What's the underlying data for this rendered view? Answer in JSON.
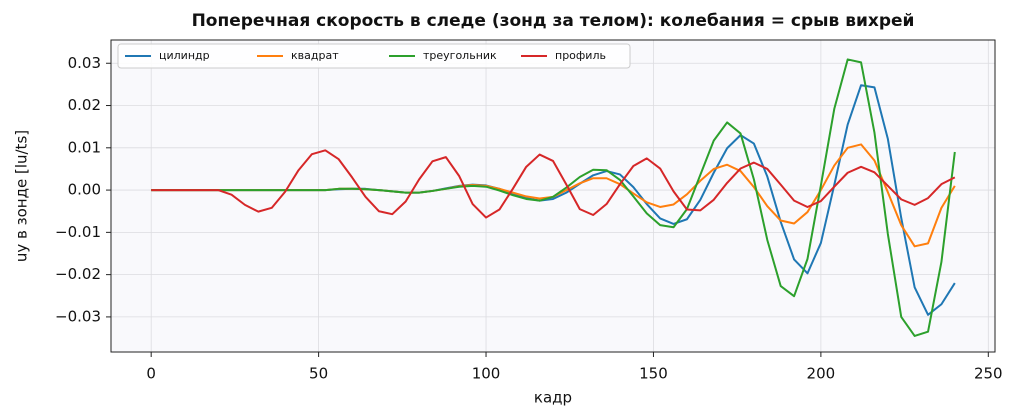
{
  "chart_data": {
    "type": "line",
    "title": "Поперечная скорость в следе (зонд за телом): колебания = срыв вихрей",
    "xlabel": "кадр",
    "ylabel": "uy в зонде [lu/ts]",
    "x": [
      0,
      4,
      8,
      12,
      16,
      20,
      24,
      28,
      32,
      36,
      40,
      44,
      48,
      52,
      56,
      60,
      64,
      68,
      72,
      76,
      80,
      84,
      88,
      92,
      96,
      100,
      104,
      108,
      112,
      116,
      120,
      124,
      128,
      132,
      136,
      140,
      144,
      148,
      152,
      156,
      160,
      164,
      168,
      172,
      176,
      180,
      184,
      188,
      192,
      196,
      200,
      204,
      208,
      212,
      216,
      220,
      224,
      228,
      232,
      236,
      240
    ],
    "series": [
      {
        "name": "цилиндр",
        "color": "#1f77b4",
        "values": [
          0,
          0,
          0,
          0,
          0,
          0,
          0,
          0,
          0,
          0,
          0,
          0,
          0,
          0,
          0.0002,
          0.0003,
          0.0003,
          0,
          -0.0003,
          -0.0006,
          -0.0006,
          -0.0002,
          0.0004,
          0.001,
          0.0013,
          0.0011,
          0.0003,
          -0.0009,
          -0.0019,
          -0.0025,
          -0.0021,
          -0.0006,
          0.0015,
          0.0035,
          0.0045,
          0.0037,
          0.0007,
          -0.0033,
          -0.0067,
          -0.008,
          -0.0069,
          -0.0023,
          0.0041,
          0.0099,
          0.013,
          0.011,
          0.0032,
          -0.0075,
          -0.0164,
          -0.0197,
          -0.0125,
          0.0012,
          0.0155,
          0.0248,
          0.0243,
          0.0121,
          -0.0066,
          -0.023,
          -0.0295,
          -0.027,
          -0.022
        ]
      },
      {
        "name": "квадрат",
        "color": "#ff7f0e",
        "values": [
          0,
          0,
          0,
          0,
          0,
          0,
          0,
          0,
          0,
          0,
          0,
          0,
          0,
          0,
          0.0003,
          0.0003,
          0.0002,
          0,
          -0.0003,
          -0.0006,
          -0.0006,
          -0.0002,
          0.0003,
          0.0009,
          0.0012,
          0.001,
          0.0003,
          -0.0006,
          -0.0015,
          -0.002,
          -0.0016,
          0,
          0.0016,
          0.0028,
          0.0028,
          0.0014,
          -0.0008,
          -0.0029,
          -0.004,
          -0.0034,
          -0.001,
          0.0022,
          0.005,
          0.006,
          0.0045,
          0.0007,
          -0.0038,
          -0.0072,
          -0.0079,
          -0.0052,
          0,
          0.0058,
          0.01,
          0.0108,
          0.007,
          -0.0005,
          -0.0083,
          -0.0133,
          -0.0126,
          -0.0042,
          0.001
        ]
      },
      {
        "name": "треугольник",
        "color": "#2ca02c",
        "values": [
          0,
          0,
          0,
          0,
          0,
          0,
          0,
          0,
          0,
          0,
          0,
          0,
          0,
          0,
          0.0003,
          0.0003,
          0.0002,
          0,
          -0.0003,
          -0.0006,
          -0.0006,
          -0.0002,
          0.0003,
          0.0008,
          0.001,
          0.0008,
          -0.0001,
          -0.0012,
          -0.0021,
          -0.0025,
          -0.0016,
          0.0006,
          0.0031,
          0.0048,
          0.0047,
          0.0024,
          -0.0015,
          -0.0055,
          -0.0083,
          -0.0088,
          -0.0045,
          0.0036,
          0.0117,
          0.016,
          0.0134,
          0.0025,
          -0.0118,
          -0.0227,
          -0.0251,
          -0.0163,
          0.0011,
          0.0192,
          0.0309,
          0.0302,
          0.0136,
          -0.0104,
          -0.03,
          -0.0345,
          -0.0335,
          -0.017,
          0.009
        ]
      },
      {
        "name": "профиль",
        "color": "#d62728",
        "values": [
          0,
          0,
          0,
          0,
          0,
          0,
          -0.0011,
          -0.0035,
          -0.0051,
          -0.0042,
          -0.0004,
          0.0047,
          0.0085,
          0.0094,
          0.0073,
          0.003,
          -0.0016,
          -0.005,
          -0.0057,
          -0.0027,
          0.0025,
          0.0068,
          0.0078,
          0.0033,
          -0.0033,
          -0.0065,
          -0.0046,
          0.0003,
          0.0055,
          0.0084,
          0.0069,
          0.0013,
          -0.0045,
          -0.0059,
          -0.0033,
          0.0014,
          0.0057,
          0.0075,
          0.0051,
          -0.0003,
          -0.0046,
          -0.0048,
          -0.0023,
          0.0017,
          0.0051,
          0.0065,
          0.005,
          0.0013,
          -0.0025,
          -0.004,
          -0.0026,
          0.0008,
          0.0041,
          0.0055,
          0.0042,
          0.001,
          -0.0022,
          -0.0035,
          -0.0019,
          0.0014,
          0.003
        ]
      }
    ],
    "xlim": [
      -12,
      252
    ],
    "ylim": [
      -0.0383,
      0.0355
    ],
    "xticks": [
      0,
      50,
      100,
      150,
      200,
      250
    ],
    "yticks": [
      {
        "value": -0.03,
        "label": "−0.03"
      },
      {
        "value": -0.02,
        "label": "−0.02"
      },
      {
        "value": -0.01,
        "label": "−0.01"
      },
      {
        "value": 0,
        "label": "0.00"
      },
      0.01,
      0.02,
      0.03
    ],
    "grid": true,
    "legend": "upper-left"
  }
}
